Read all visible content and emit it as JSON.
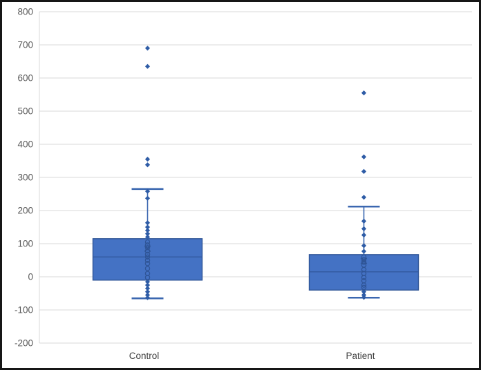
{
  "chart_data": {
    "type": "boxplot",
    "title": "",
    "xlabel": "",
    "ylabel": "",
    "categories": [
      "Control",
      "Patient"
    ],
    "ylim": [
      -200,
      800
    ],
    "ytick_interval": 100,
    "yticks": [
      -200,
      -100,
      0,
      100,
      200,
      300,
      400,
      500,
      600,
      700,
      800
    ],
    "grid": true,
    "legend": "none",
    "series": [
      {
        "name": "Control",
        "box": {
          "whisker_low": -65,
          "q1": -10,
          "median": 60,
          "q3": 115,
          "whisker_high": 265,
          "mean": 85
        },
        "outliers": [
          690,
          635,
          355,
          338
        ],
        "points_filled": [
          258,
          237,
          163,
          150,
          140,
          130,
          120,
          -15,
          -25,
          -35,
          -45,
          -55,
          -63
        ],
        "points_open": [
          105,
          96,
          88,
          78,
          68,
          60,
          50,
          40,
          25,
          10,
          -2
        ]
      },
      {
        "name": "Patient",
        "box": {
          "whisker_low": -63,
          "q1": -40,
          "median": 15,
          "q3": 67,
          "whisker_high": 212,
          "mean": 48
        },
        "outliers": [
          555,
          362,
          318,
          240
        ],
        "points_filled": [
          168,
          145,
          126,
          94,
          77,
          -45,
          -55,
          -62
        ],
        "points_open": [
          60,
          52,
          44,
          35,
          22,
          10,
          -2,
          -12,
          -25,
          -32
        ]
      }
    ],
    "colors": {
      "box_fill": "#4472C4",
      "box_border": "#2F5597",
      "whisker": "#3B67B0",
      "point_fill": "#2E5CA6",
      "point_open_stroke": "#2F5597",
      "mean_marker": "#2F5597",
      "gridline": "#D9D9D9",
      "axis_line": "#D9D9D9",
      "axis_tick_label": "#595959",
      "category_label": "#404040",
      "background": "#FFFFFF"
    }
  }
}
